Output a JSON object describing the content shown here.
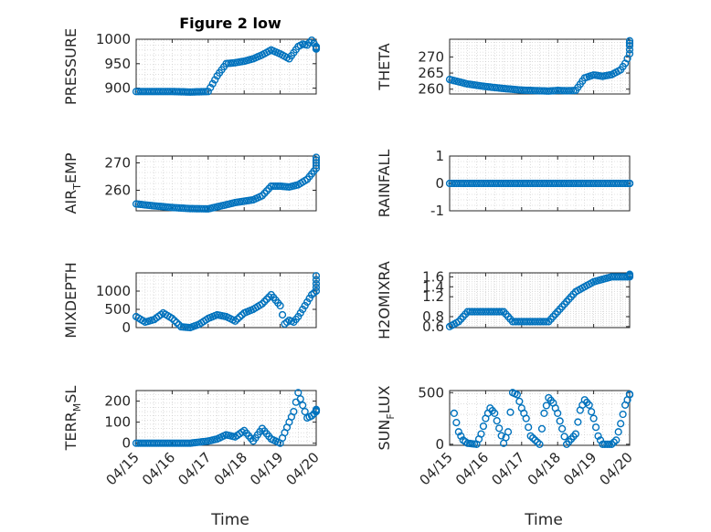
{
  "figure": {
    "title": "Figure 2 low",
    "xlabel": "Time"
  },
  "colors": {
    "marker": "#0072BD",
    "axis": "#262626",
    "grid": "#c8c8c8",
    "background": "#ffffff"
  },
  "chart_data": [
    {
      "type": "scatter",
      "ylabel": "PRESSURE",
      "ylim": [
        888,
        1000
      ],
      "yticks": [
        900,
        950,
        1000
      ],
      "xlim": [
        "04/15",
        "04/20"
      ],
      "x_hours": [
        0,
        12,
        24,
        36,
        48,
        54,
        60,
        66,
        72,
        78,
        84,
        90,
        96,
        102,
        108,
        111,
        114,
        117,
        120,
        123,
        126
      ],
      "values": [
        893,
        893,
        893,
        892,
        893,
        925,
        950,
        952,
        955,
        960,
        968,
        978,
        970,
        960,
        985,
        990,
        988,
        998,
        985,
        982,
        980
      ]
    },
    {
      "type": "scatter",
      "ylabel": "THETA",
      "ylim": [
        258.5,
        275.5
      ],
      "yticks": [
        260,
        265,
        270
      ],
      "xlim": [
        "04/15",
        "04/20"
      ],
      "x_hours": [
        0,
        12,
        24,
        36,
        48,
        60,
        66,
        72,
        78,
        84,
        90,
        96,
        102,
        108,
        114,
        117,
        120,
        123,
        126
      ],
      "values": [
        263,
        261.6,
        260.8,
        260.2,
        259.7,
        259.5,
        259.4,
        259.6,
        259.5,
        259.6,
        263.5,
        264.4,
        264.0,
        264.5,
        266,
        268,
        271,
        273.5,
        275
      ]
    },
    {
      "type": "scatter",
      "ylabel": "AIR_TEMP",
      "ylim": [
        252.5,
        272.5
      ],
      "yticks": [
        260,
        270
      ],
      "xlim": [
        "04/15",
        "04/20"
      ],
      "x_hours": [
        0,
        12,
        24,
        36,
        48,
        60,
        66,
        72,
        78,
        84,
        90,
        96,
        102,
        108,
        114,
        117,
        120,
        123,
        126
      ],
      "values": [
        255,
        254.3,
        253.7,
        253.3,
        253.2,
        254.7,
        255.5,
        256,
        256.5,
        258,
        261.5,
        261.5,
        261.2,
        262,
        264,
        266,
        268,
        270,
        272
      ]
    },
    {
      "type": "scatter",
      "ylabel": "RAINFALL",
      "ylim": [
        -1,
        1
      ],
      "yticks": [
        -1,
        0,
        1
      ],
      "xlim": [
        "04/15",
        "04/20"
      ],
      "x_hours": [
        0,
        12,
        24,
        36,
        48,
        60,
        72,
        84,
        96,
        108,
        120,
        126
      ],
      "values": [
        0,
        0,
        0,
        0,
        0,
        0,
        0,
        0,
        0,
        0,
        0,
        0
      ]
    },
    {
      "type": "scatter",
      "ylabel": "MIXDEPTH",
      "ylim": [
        0,
        1500
      ],
      "yticks": [
        0,
        500,
        1000
      ],
      "xlim": [
        "04/15",
        "04/20"
      ],
      "x_hours": [
        0,
        6,
        12,
        18,
        24,
        30,
        36,
        42,
        48,
        54,
        60,
        66,
        72,
        78,
        84,
        90,
        96,
        99,
        102,
        105,
        108,
        111,
        114,
        117,
        120,
        123,
        126
      ],
      "values": [
        300,
        150,
        220,
        400,
        250,
        20,
        0,
        90,
        250,
        350,
        300,
        180,
        400,
        500,
        650,
        900,
        600,
        100,
        200,
        150,
        300,
        500,
        700,
        900,
        1000,
        1200,
        1420
      ]
    },
    {
      "type": "scatter",
      "ylabel": "H2OMIXRA",
      "ylim": [
        0.58,
        1.68
      ],
      "yticks": [
        0.6,
        0.8,
        1.2,
        1.4,
        1.6
      ],
      "xlim": [
        "04/15",
        "04/20"
      ],
      "x_hours": [
        0,
        6,
        12,
        18,
        24,
        30,
        36,
        42,
        48,
        54,
        60,
        66,
        72,
        78,
        84,
        90,
        96,
        102,
        108,
        114,
        120,
        126
      ],
      "values": [
        0.6,
        0.7,
        0.9,
        0.9,
        0.9,
        0.9,
        0.9,
        0.7,
        0.7,
        0.7,
        0.7,
        0.7,
        0.9,
        1.1,
        1.3,
        1.4,
        1.5,
        1.55,
        1.6,
        1.6,
        1.6,
        1.65
      ]
    },
    {
      "type": "scatter",
      "ylabel": "TERR_MSL",
      "ylim": [
        -10,
        250
      ],
      "yticks": [
        0,
        100,
        200
      ],
      "xlim": [
        "04/15",
        "04/20"
      ],
      "x_hours": [
        0,
        12,
        24,
        36,
        48,
        54,
        60,
        66,
        72,
        78,
        84,
        90,
        96,
        99,
        102,
        105,
        108,
        111,
        114,
        117,
        120,
        123,
        126
      ],
      "values": [
        0,
        0,
        0,
        0,
        10,
        20,
        40,
        30,
        60,
        10,
        70,
        20,
        0,
        50,
        100,
        150,
        240,
        180,
        120,
        130,
        150,
        160,
        155
      ]
    },
    {
      "type": "scatter",
      "ylabel": "SUN_FLUX",
      "ylim": [
        -10,
        520
      ],
      "yticks": [
        0,
        500
      ],
      "xlim": [
        "04/15",
        "04/20"
      ],
      "x_hours": [
        3,
        6,
        9,
        12,
        18,
        21,
        24,
        27,
        30,
        36,
        39,
        42,
        45,
        48,
        51,
        54,
        60,
        63,
        66,
        69,
        72,
        75,
        78,
        84,
        87,
        90,
        93,
        96,
        99,
        102,
        108,
        111,
        114,
        117,
        120,
        123
      ],
      "values": [
        300,
        120,
        40,
        10,
        0,
        100,
        250,
        350,
        300,
        10,
        120,
        500,
        480,
        350,
        250,
        80,
        0,
        300,
        450,
        400,
        300,
        150,
        0,
        100,
        330,
        430,
        380,
        250,
        80,
        0,
        0,
        40,
        200,
        380,
        480,
        485
      ]
    }
  ]
}
